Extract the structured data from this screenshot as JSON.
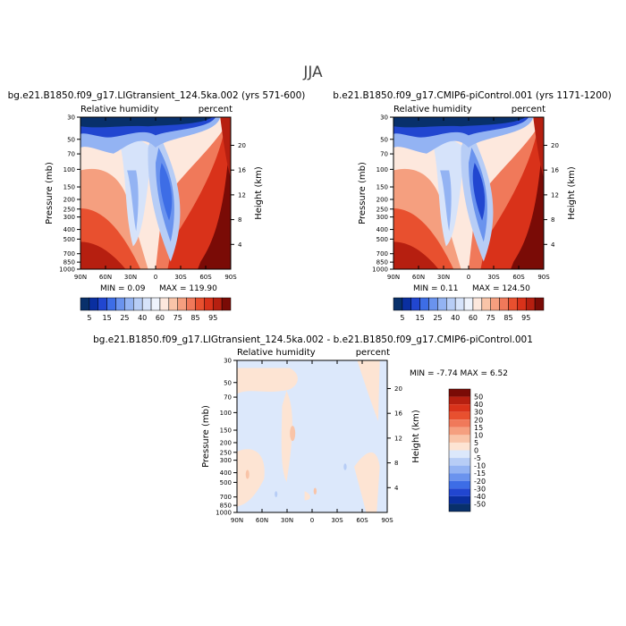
{
  "page": {
    "season": "JJA"
  },
  "colors": {
    "abs_palette": [
      "#08306b",
      "#0a2fa0",
      "#2146d0",
      "#3d6de6",
      "#6a93ee",
      "#93b3f3",
      "#b7cdf6",
      "#d6e3fa",
      "#eef3fc",
      "#fde8dd",
      "#f9c4a8",
      "#f59f7f",
      "#f0795a",
      "#e8502f",
      "#d9321a",
      "#b61f10",
      "#7a0b06"
    ],
    "diff_palette": [
      "#08306b",
      "#0a2fa0",
      "#2146d0",
      "#3d6de6",
      "#6a93ee",
      "#93b3f3",
      "#b7cdf6",
      "#dce8fb",
      "#fde4d3",
      "#f9c4a8",
      "#f59f7f",
      "#f0795a",
      "#e8502f",
      "#d9321a",
      "#b61f10",
      "#7a0b06"
    ]
  },
  "chart_data": [
    {
      "type": "heatmap",
      "title": "bg.e21.B1850.f09_g17.LIGtransient_124.5ka.002 (yrs 571-600)",
      "left_label": "Relative humidity",
      "right_label": "percent",
      "ylabel": "Pressure (mb)",
      "y2label": "Height (km)",
      "x_ticks": [
        "90N",
        "60N",
        "30N",
        "0",
        "30S",
        "60S",
        "90S"
      ],
      "y_ticks": [
        1000,
        850,
        700,
        500,
        400,
        300,
        250,
        200,
        150,
        100,
        70,
        50,
        30
      ],
      "height_ticks": [
        4,
        8,
        12,
        16,
        20
      ],
      "min_text": "MIN =    0.09",
      "max_text": "MAX = 119.90",
      "colorbar_labels": [
        "5",
        "15",
        "25",
        "40",
        "60",
        "75",
        "85",
        "95"
      ]
    },
    {
      "type": "heatmap",
      "title": "b.e21.B1850.f09_g17.CMIP6-piControl.001 (yrs 1171-1200)",
      "left_label": "Relative humidity",
      "right_label": "percent",
      "ylabel": "Pressure (mb)",
      "y2label": "Height (km)",
      "x_ticks": [
        "90N",
        "60N",
        "30N",
        "0",
        "30S",
        "60S",
        "90S"
      ],
      "y_ticks": [
        1000,
        850,
        700,
        500,
        400,
        300,
        250,
        200,
        150,
        100,
        70,
        50,
        30
      ],
      "height_ticks": [
        4,
        8,
        12,
        16,
        20
      ],
      "min_text": "MIN =    0.11",
      "max_text": "MAX = 124.50",
      "colorbar_labels": [
        "5",
        "15",
        "25",
        "40",
        "60",
        "75",
        "85",
        "95"
      ]
    },
    {
      "type": "heatmap",
      "title": "bg.e21.B1850.f09_g17.LIGtransient_124.5ka.002 - b.e21.B1850.f09_g17.CMIP6-piControl.001",
      "left_label": "Relative humidity",
      "right_label": "percent",
      "ylabel": "Pressure (mb)",
      "y2label": "Height (km)",
      "x_ticks": [
        "90N",
        "60N",
        "30N",
        "0",
        "30S",
        "60S",
        "90S"
      ],
      "y_ticks": [
        1000,
        850,
        700,
        500,
        400,
        300,
        250,
        200,
        150,
        100,
        70,
        50,
        30
      ],
      "height_ticks": [
        4,
        8,
        12,
        16,
        20
      ],
      "min_max_text": "MIN =  -7.74   MAX =    6.52",
      "colorbar_labels": [
        "50",
        "40",
        "30",
        "20",
        "15",
        "10",
        "5",
        "0",
        "-5",
        "-10",
        "-15",
        "-20",
        "-30",
        "-40",
        "-50"
      ]
    }
  ]
}
